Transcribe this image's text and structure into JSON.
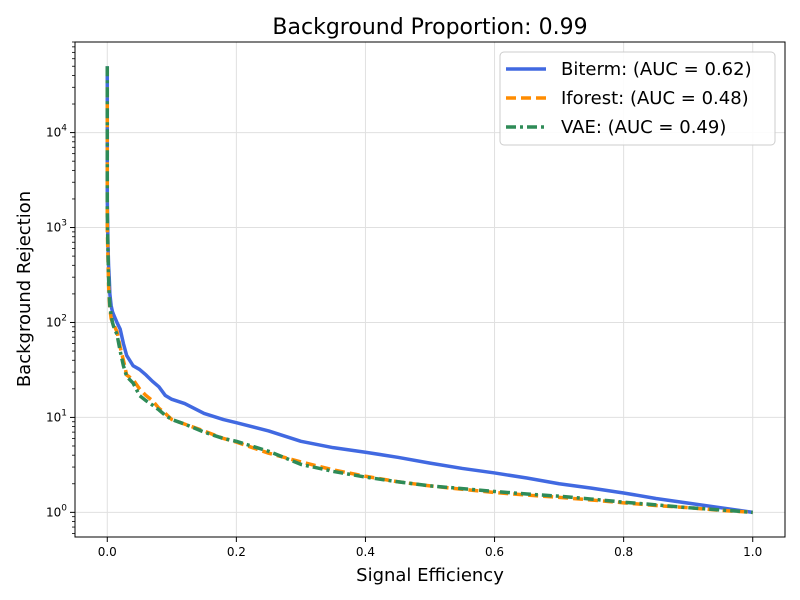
{
  "chart_data": {
    "type": "line",
    "title": "Background Proportion: 0.99",
    "xlabel": "Signal Efficiency",
    "ylabel": "Background Rejection",
    "xlim": [
      -0.05,
      1.05
    ],
    "ylim": [
      0.55,
      90000
    ],
    "yscale": "log",
    "grid": true,
    "legend_position": "top-right",
    "x_ticks": [
      0.0,
      0.2,
      0.4,
      0.6,
      0.8,
      1.0
    ],
    "x_tick_labels": [
      "0.0",
      "0.2",
      "0.4",
      "0.6",
      "0.8",
      "1.0"
    ],
    "y_ticks": [
      1,
      10,
      100,
      1000,
      10000
    ],
    "y_tick_labels": [
      {
        "base": "10",
        "exp": "0"
      },
      {
        "base": "10",
        "exp": "1"
      },
      {
        "base": "10",
        "exp": "2"
      },
      {
        "base": "10",
        "exp": "3"
      },
      {
        "base": "10",
        "exp": "4"
      }
    ],
    "series": [
      {
        "name": "Biterm: (AUC = 0.62)",
        "color": "#4169e1",
        "style": "solid",
        "x": [
          0.0,
          0.0,
          0.0,
          0.001,
          0.002,
          0.003,
          0.004,
          0.006,
          0.008,
          0.01,
          0.015,
          0.02,
          0.025,
          0.03,
          0.04,
          0.05,
          0.06,
          0.07,
          0.08,
          0.09,
          0.1,
          0.12,
          0.15,
          0.18,
          0.2,
          0.25,
          0.3,
          0.35,
          0.4,
          0.45,
          0.5,
          0.55,
          0.6,
          0.65,
          0.7,
          0.75,
          0.8,
          0.85,
          0.9,
          0.95,
          1.0
        ],
        "y": [
          50000,
          10000,
          2000,
          700,
          400,
          300,
          200,
          150,
          130,
          120,
          100,
          85,
          60,
          45,
          35,
          32,
          28,
          24,
          21,
          17,
          15.5,
          14,
          11,
          9.5,
          8.8,
          7.2,
          5.6,
          4.8,
          4.3,
          3.8,
          3.3,
          2.9,
          2.6,
          2.3,
          2.0,
          1.8,
          1.6,
          1.4,
          1.25,
          1.12,
          1.0
        ]
      },
      {
        "name": "Iforest: (AUC = 0.48)",
        "color": "#ff8c00",
        "style": "dashed",
        "x": [
          0.0,
          0.0,
          0.0,
          0.001,
          0.002,
          0.003,
          0.004,
          0.006,
          0.008,
          0.01,
          0.015,
          0.02,
          0.025,
          0.03,
          0.04,
          0.05,
          0.06,
          0.07,
          0.08,
          0.09,
          0.1,
          0.12,
          0.15,
          0.18,
          0.2,
          0.25,
          0.3,
          0.35,
          0.4,
          0.45,
          0.5,
          0.55,
          0.6,
          0.65,
          0.7,
          0.75,
          0.8,
          0.85,
          0.9,
          0.95,
          1.0
        ],
        "y": [
          30000,
          5000,
          1000,
          500,
          250,
          180,
          140,
          110,
          100,
          95,
          80,
          55,
          40,
          28,
          25,
          20,
          17,
          15,
          12.5,
          11,
          9.5,
          8.5,
          7.2,
          6.0,
          5.5,
          4.2,
          3.4,
          2.8,
          2.4,
          2.1,
          1.9,
          1.75,
          1.62,
          1.52,
          1.44,
          1.35,
          1.26,
          1.18,
          1.12,
          1.05,
          1.0
        ]
      },
      {
        "name": "VAE: (AUC = 0.49)",
        "color": "#2e8b57",
        "style": "dashdot",
        "x": [
          0.0,
          0.0,
          0.0,
          0.001,
          0.002,
          0.003,
          0.004,
          0.006,
          0.008,
          0.01,
          0.015,
          0.02,
          0.025,
          0.03,
          0.04,
          0.05,
          0.06,
          0.07,
          0.08,
          0.09,
          0.1,
          0.12,
          0.15,
          0.18,
          0.2,
          0.25,
          0.3,
          0.35,
          0.4,
          0.45,
          0.5,
          0.55,
          0.6,
          0.65,
          0.7,
          0.75,
          0.8,
          0.85,
          0.9,
          0.95,
          1.0
        ],
        "y": [
          50000,
          8000,
          1500,
          600,
          300,
          200,
          150,
          120,
          100,
          90,
          75,
          50,
          35,
          27,
          23,
          17,
          15,
          13.5,
          12,
          10.5,
          9.5,
          8.5,
          7.0,
          6.0,
          5.6,
          4.4,
          3.2,
          2.7,
          2.35,
          2.1,
          1.9,
          1.78,
          1.66,
          1.56,
          1.48,
          1.38,
          1.28,
          1.2,
          1.12,
          1.06,
          1.0
        ]
      }
    ]
  }
}
